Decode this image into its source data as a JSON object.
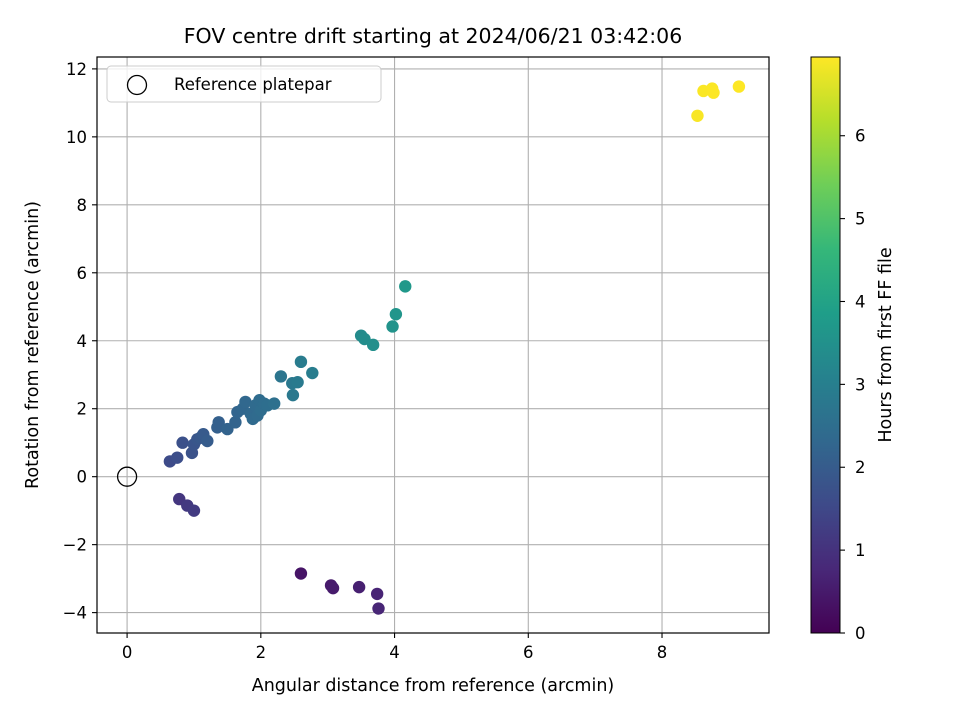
{
  "chart_data": {
    "type": "scatter",
    "title": "FOV centre drift starting at 2024/06/21 03:42:06",
    "xlabel": "Angular distance from reference (arcmin)",
    "ylabel": "Rotation from reference (arcmin)",
    "xlim": [
      -0.45,
      9.6
    ],
    "ylim": [
      -4.6,
      12.35
    ],
    "xticks": [
      0,
      2,
      4,
      6,
      8
    ],
    "yticks": [
      -4,
      -2,
      0,
      2,
      4,
      6,
      8,
      10,
      12
    ],
    "ytick_labels": [
      "−4",
      "−2",
      "0",
      "2",
      "4",
      "6",
      "8",
      "10",
      "12"
    ],
    "grid": true,
    "legend": {
      "position": "top-left",
      "entries": [
        "Reference platepar"
      ]
    },
    "reference_point": {
      "x": 0,
      "y": 0
    },
    "colorbar": {
      "label": "Hours from first FF file",
      "colormap": "viridis",
      "range": [
        0,
        6.95
      ],
      "ticks": [
        0,
        1,
        2,
        3,
        4,
        5,
        6
      ]
    },
    "x": [
      2.6,
      3.05,
      3.08,
      3.47,
      3.74,
      3.76,
      0.78,
      0.9,
      1.0,
      0.64,
      0.75,
      0.83,
      0.97,
      1.0,
      1.05,
      1.1,
      1.14,
      1.2,
      1.35,
      1.37,
      1.5,
      1.62,
      1.65,
      1.73,
      1.77,
      1.85,
      1.88,
      1.92,
      1.95,
      1.98,
      2.0,
      2.05,
      2.1,
      2.2,
      2.3,
      2.47,
      2.48,
      2.55,
      2.6,
      2.77,
      3.5,
      3.55,
      3.68,
      3.97,
      4.02,
      4.16,
      8.53,
      8.62,
      8.75,
      8.77,
      9.15
    ],
    "y": [
      -2.85,
      -3.2,
      -3.28,
      -3.25,
      -3.45,
      -3.88,
      -0.66,
      -0.85,
      -1.0,
      0.45,
      0.56,
      1.0,
      0.7,
      0.95,
      1.1,
      1.15,
      1.25,
      1.05,
      1.45,
      1.6,
      1.4,
      1.6,
      1.9,
      2.0,
      2.2,
      1.85,
      1.7,
      2.1,
      1.8,
      2.25,
      1.95,
      2.15,
      2.1,
      2.15,
      2.95,
      2.75,
      2.4,
      2.78,
      3.38,
      3.05,
      4.15,
      4.05,
      3.88,
      4.42,
      4.78,
      5.6,
      10.62,
      11.35,
      11.42,
      11.3,
      11.48
    ],
    "hours": [
      0.38,
      0.5,
      0.52,
      0.62,
      0.7,
      0.74,
      1.1,
      1.15,
      1.2,
      1.58,
      1.65,
      1.7,
      1.75,
      1.8,
      1.85,
      1.9,
      1.95,
      2.0,
      2.1,
      2.12,
      2.18,
      2.22,
      2.25,
      2.3,
      2.32,
      2.35,
      2.38,
      2.4,
      2.42,
      2.44,
      2.46,
      2.48,
      2.5,
      2.55,
      2.7,
      2.78,
      2.8,
      2.85,
      2.9,
      2.95,
      3.35,
      3.38,
      3.45,
      3.55,
      3.62,
      3.7,
      6.9,
      6.92,
      6.93,
      6.94,
      6.95
    ]
  }
}
